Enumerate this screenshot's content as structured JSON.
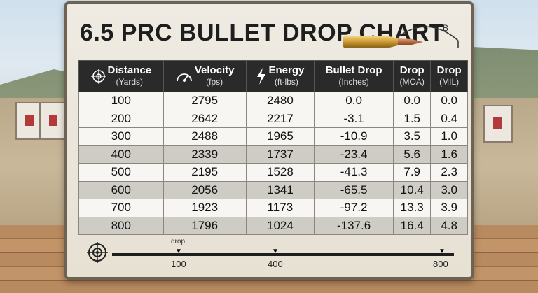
{
  "title": "6.5 PRC BULLET DROP CHART",
  "arc_label": "B",
  "columns": [
    {
      "label": "Distance",
      "unit": "(Yards)",
      "icon": "crosshair-icon"
    },
    {
      "label": "Velocity",
      "unit": "(fps)",
      "icon": "speedometer-icon"
    },
    {
      "label": "Energy",
      "unit": "(ft-lbs)",
      "icon": "lightning-icon"
    },
    {
      "label": "Bullet Drop",
      "unit": "(Inches)",
      "icon": ""
    },
    {
      "label": "Drop",
      "unit": "(MOA)",
      "icon": ""
    },
    {
      "label": "Drop",
      "unit": "(MIL)",
      "icon": ""
    }
  ],
  "rows": [
    [
      "100",
      "2795",
      "2480",
      "0.0",
      "0.0",
      "0.0"
    ],
    [
      "200",
      "2642",
      "2217",
      "-3.1",
      "1.5",
      "0.4"
    ],
    [
      "300",
      "2488",
      "1965",
      "-10.9",
      "3.5",
      "1.0"
    ],
    [
      "400",
      "2339",
      "1737",
      "-23.4",
      "5.6",
      "1.6"
    ],
    [
      "500",
      "2195",
      "1528",
      "-41.3",
      "7.9",
      "2.3"
    ],
    [
      "600",
      "2056",
      "1341",
      "-65.5",
      "10.4",
      "3.0"
    ],
    [
      "700",
      "1923",
      "1173",
      "-97.2",
      "13.3",
      "3.9"
    ],
    [
      "800",
      "1796",
      "1024",
      "-137.6",
      "16.4",
      "4.8"
    ]
  ],
  "scale": {
    "marker_label": "drop",
    "labels": [
      "100",
      "400",
      "800"
    ]
  },
  "colors": {
    "header_bg": "#2a2a2a",
    "row_light": "#f7f6f2",
    "row_dark": "#cfccc6"
  }
}
